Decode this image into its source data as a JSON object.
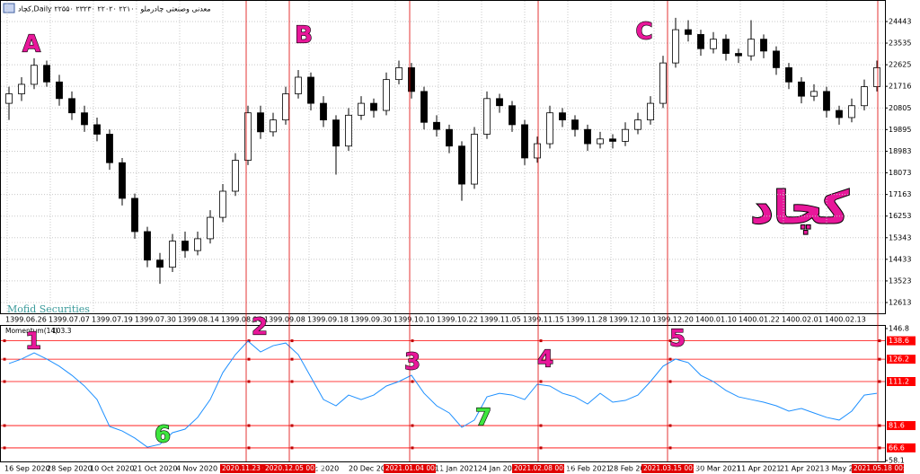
{
  "chart_data": [
    {
      "type": "candlestick",
      "title": "کچاد,Daily  ۲۲۵۵۰ ۲۳۲۳۰ ۲۲۰۲۰ ۲۲۱۰۰  معدنی وصنعتی چادرملو",
      "watermark": "Mofid Securities",
      "symbol_label": "کچاد",
      "up_color": "#ffffff",
      "down_color": "#000000",
      "grid": true,
      "ylim": [
        12122,
        25350
      ],
      "yticks": [
        24443,
        23535,
        22625,
        21716,
        20805,
        19895,
        18983,
        18073,
        17163,
        16253,
        15343,
        14433,
        13523,
        12613
      ],
      "xticks": [
        "1399.06.26",
        "1399.07.07",
        "1399.07.19",
        "1399.07.30",
        "1399.08.14",
        "1399.08.26",
        "1399.09.08",
        "1399.09.18",
        "1399.09.30",
        "1399.10.10",
        "1399.10.22",
        "1399.11.05",
        "1399.11.15",
        "1399.11.28",
        "1399.12.10",
        "1399.12.20",
        "1400.01.10",
        "1400.01.22",
        "1400.02.01",
        "1400.02.13"
      ],
      "annotations": [
        "A",
        "B",
        "C"
      ],
      "candles": [
        [
          21000,
          21700,
          20300,
          21400
        ],
        [
          21400,
          22100,
          21100,
          21800
        ],
        [
          21800,
          22900,
          21600,
          22600
        ],
        [
          22600,
          22800,
          21700,
          21900
        ],
        [
          21900,
          22200,
          20900,
          21200
        ],
        [
          21200,
          21500,
          20300,
          20600
        ],
        [
          20600,
          20900,
          19800,
          20100
        ],
        [
          20100,
          20400,
          19400,
          19700
        ],
        [
          19700,
          19900,
          18200,
          18500
        ],
        [
          18500,
          18700,
          16700,
          17000
        ],
        [
          17000,
          17200,
          15300,
          15600
        ],
        [
          15600,
          15800,
          14100,
          14400
        ],
        [
          14400,
          14700,
          13400,
          14100
        ],
        [
          14100,
          15500,
          13900,
          15200
        ],
        [
          15200,
          15600,
          14500,
          14800
        ],
        [
          14800,
          15600,
          14600,
          15300
        ],
        [
          15300,
          16500,
          15100,
          16200
        ],
        [
          16200,
          17600,
          16000,
          17300
        ],
        [
          17300,
          18900,
          17100,
          18600
        ],
        [
          18600,
          20900,
          18400,
          20600
        ],
        [
          20600,
          20900,
          19500,
          19800
        ],
        [
          19800,
          20600,
          19600,
          20300
        ],
        [
          20300,
          21700,
          20100,
          21400
        ],
        [
          21400,
          22400,
          21200,
          22100
        ],
        [
          22100,
          22300,
          20700,
          21000
        ],
        [
          21000,
          21300,
          20000,
          20300
        ],
        [
          20300,
          20500,
          18000,
          19200
        ],
        [
          19200,
          20800,
          19000,
          20500
        ],
        [
          20500,
          21300,
          20300,
          21000
        ],
        [
          21000,
          21200,
          20400,
          20700
        ],
        [
          20700,
          22300,
          20500,
          22000
        ],
        [
          22000,
          22800,
          21800,
          22500
        ],
        [
          22500,
          22700,
          21200,
          21500
        ],
        [
          21500,
          21700,
          19900,
          20200
        ],
        [
          20200,
          20500,
          19600,
          19900
        ],
        [
          19900,
          20100,
          18900,
          19200
        ],
        [
          19200,
          19400,
          16900,
          17600
        ],
        [
          17600,
          20000,
          17400,
          19700
        ],
        [
          19700,
          21500,
          19500,
          21200
        ],
        [
          21200,
          21400,
          20600,
          20900
        ],
        [
          20900,
          21100,
          19800,
          20100
        ],
        [
          20100,
          20300,
          18400,
          18700
        ],
        [
          18700,
          19600,
          18500,
          19300
        ],
        [
          19300,
          20900,
          19100,
          20600
        ],
        [
          20600,
          20800,
          20000,
          20300
        ],
        [
          20300,
          20500,
          19600,
          19900
        ],
        [
          19900,
          20100,
          19000,
          19300
        ],
        [
          19300,
          19800,
          19100,
          19500
        ],
        [
          19500,
          19700,
          19100,
          19400
        ],
        [
          19400,
          20200,
          19200,
          19900
        ],
        [
          19900,
          20600,
          19700,
          20300
        ],
        [
          20300,
          21300,
          20100,
          21000
        ],
        [
          21000,
          23000,
          20800,
          22700
        ],
        [
          22700,
          24600,
          22500,
          24100
        ],
        [
          24100,
          24500,
          23600,
          23900
        ],
        [
          23900,
          24100,
          23000,
          23300
        ],
        [
          23300,
          24000,
          23100,
          23700
        ],
        [
          23700,
          23900,
          22800,
          23100
        ],
        [
          23100,
          23300,
          22700,
          23000
        ],
        [
          23000,
          24500,
          22800,
          23700
        ],
        [
          23700,
          23900,
          22900,
          23200
        ],
        [
          23200,
          23400,
          22200,
          22500
        ],
        [
          22500,
          22700,
          21600,
          21900
        ],
        [
          21900,
          22100,
          21000,
          21300
        ],
        [
          21300,
          21800,
          21100,
          21500
        ],
        [
          21500,
          21700,
          20400,
          20700
        ],
        [
          20700,
          20900,
          20100,
          20400
        ],
        [
          20400,
          21200,
          20200,
          20900
        ],
        [
          20900,
          22000,
          20700,
          21700
        ],
        [
          21700,
          22800,
          21500,
          22500
        ]
      ]
    },
    {
      "type": "line",
      "ylim": [
        58.1,
        146.8
      ],
      "yticks": [
        146.8,
        58.1
      ],
      "levels": [
        138.6,
        126.2,
        111.2,
        81.6,
        66.6
      ],
      "level_color": "#ff0000",
      "series": [
        {
          "name": "Momentum(14)",
          "color": "#1e90ff",
          "values": [
            123.3,
            126.3,
            130.5,
            126.3,
            121.5,
            115.4,
            108.2,
            99.1,
            81.0,
            78.0,
            73.2,
            67.1,
            69.0,
            76.8,
            79.2,
            87.1,
            99.1,
            117.2,
            129.3,
            138.4,
            131.1,
            135.3,
            137.1,
            129.3,
            114.2,
            99.1,
            94.9,
            102.1,
            99.1,
            102.1,
            108.2,
            111.2,
            115.4,
            103.3,
            94.9,
            90.1,
            80.4,
            85.3,
            100.9,
            103.3,
            102.1,
            99.1,
            109.4,
            108.2,
            103.3,
            100.9,
            96.1,
            103.3,
            97.3,
            98.5,
            102.1,
            111.2,
            121.5,
            126.3,
            123.9,
            115.4,
            111.2,
            105.2,
            100.9,
            99.1,
            97.3,
            94.9,
            91.3,
            93.1,
            90.1,
            87.1,
            85.3,
            91.3,
            102.1,
            103.3
          ]
        }
      ],
      "xticks": [
        "16 Sep 2020",
        "28 Sep 2020",
        "10 Oct 2020",
        "21 Oct 2020",
        "4 Nov 2020",
        "ec 2020",
        "20 Dec 2020",
        "11 Jan 2021",
        "24 Jan 2021",
        "16 Feb 2021",
        "28 Feb 202",
        "30 Mar 2021",
        "11 Apr 2021",
        "21 Apr 2021",
        "3 May 202"
      ],
      "markers": [
        "2020.11.23 00:00",
        "2020.12.05 00:00",
        "2021.01.04 00:00",
        "2021.02.08 00:00",
        "2021.03.15 00:00",
        "2021.05.18 00:00"
      ],
      "annotations": [
        "1",
        "2",
        "3",
        "4",
        "5",
        "6",
        "7"
      ]
    }
  ]
}
